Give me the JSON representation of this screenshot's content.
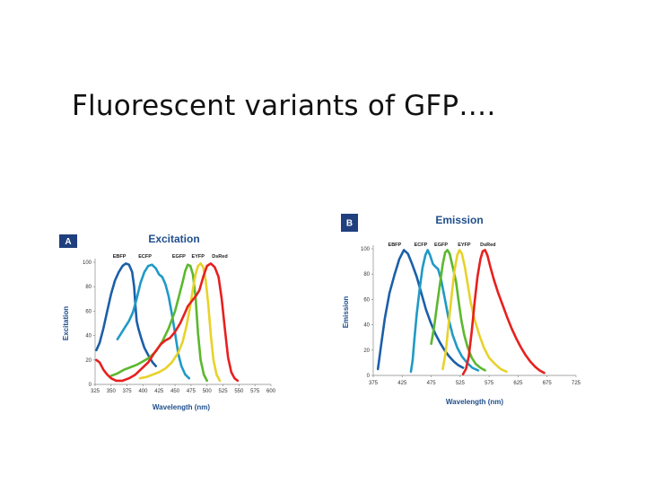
{
  "slide": {
    "title": "Fluorescent variants of GFP…."
  },
  "chart_data": [
    {
      "type": "line",
      "panel": "A",
      "title": "Excitation",
      "xlabel": "Wavelength (nm)",
      "ylabel": "Excitation",
      "xlim": [
        325,
        600
      ],
      "ylim": [
        0,
        100
      ],
      "x_ticks": [
        "325",
        "350",
        "375",
        "400",
        "425",
        "450",
        "475",
        "500",
        "525",
        "550",
        "575",
        "600"
      ],
      "y_ticks": [
        "0",
        "20",
        "40",
        "60",
        "80",
        "100"
      ],
      "series": [
        {
          "name": "EBFP",
          "color": "#1b5fa8",
          "label_x": 363,
          "points": [
            [
              327,
              28
            ],
            [
              332,
              34
            ],
            [
              338,
              46
            ],
            [
              344,
              60
            ],
            [
              350,
              74
            ],
            [
              356,
              85
            ],
            [
              362,
              92
            ],
            [
              368,
              97
            ],
            [
              373,
              99
            ],
            [
              378,
              98
            ],
            [
              383,
              92
            ],
            [
              386,
              80
            ],
            [
              388,
              65
            ],
            [
              390,
              52
            ],
            [
              393,
              45
            ],
            [
              397,
              38
            ],
            [
              402,
              30
            ],
            [
              408,
              24
            ],
            [
              415,
              18
            ],
            [
              420,
              15
            ]
          ]
        },
        {
          "name": "ECFP",
          "color": "#1f9ac6",
          "label_x": 403,
          "points": [
            [
              360,
              37
            ],
            [
              366,
              42
            ],
            [
              372,
              47
            ],
            [
              378,
              52
            ],
            [
              384,
              59
            ],
            [
              390,
              70
            ],
            [
              396,
              83
            ],
            [
              402,
              92
            ],
            [
              408,
              97
            ],
            [
              414,
              98
            ],
            [
              420,
              95
            ],
            [
              425,
              90
            ],
            [
              430,
              88
            ],
            [
              435,
              82
            ],
            [
              440,
              72
            ],
            [
              445,
              58
            ],
            [
              450,
              42
            ],
            [
              455,
              25
            ],
            [
              460,
              15
            ],
            [
              466,
              8
            ],
            [
              472,
              5
            ]
          ]
        },
        {
          "name": "EGFP",
          "color": "#5cb82e",
          "label_x": 456,
          "points": [
            [
              350,
              7
            ],
            [
              360,
              9
            ],
            [
              370,
              12
            ],
            [
              380,
              14
            ],
            [
              390,
              16
            ],
            [
              400,
              19
            ],
            [
              410,
              22
            ],
            [
              420,
              27
            ],
            [
              430,
              35
            ],
            [
              440,
              46
            ],
            [
              450,
              60
            ],
            [
              456,
              72
            ],
            [
              462,
              84
            ],
            [
              466,
              93
            ],
            [
              470,
              98
            ],
            [
              474,
              97
            ],
            [
              478,
              90
            ],
            [
              482,
              72
            ],
            [
              486,
              42
            ],
            [
              490,
              20
            ],
            [
              495,
              8
            ],
            [
              500,
              3
            ]
          ]
        },
        {
          "name": "EYFP",
          "color": "#e8d22a",
          "label_x": 486,
          "points": [
            [
              395,
              5
            ],
            [
              405,
              6
            ],
            [
              415,
              8
            ],
            [
              425,
              10
            ],
            [
              435,
              13
            ],
            [
              445,
              18
            ],
            [
              455,
              26
            ],
            [
              462,
              35
            ],
            [
              468,
              48
            ],
            [
              473,
              62
            ],
            [
              478,
              78
            ],
            [
              482,
              90
            ],
            [
              486,
              97
            ],
            [
              490,
              99
            ],
            [
              494,
              96
            ],
            [
              498,
              85
            ],
            [
              502,
              65
            ],
            [
              506,
              40
            ],
            [
              510,
              20
            ],
            [
              515,
              8
            ],
            [
              520,
              3
            ]
          ]
        },
        {
          "name": "DsRed",
          "color": "#e81f1f",
          "label_x": 520,
          "points": [
            [
              327,
              20
            ],
            [
              332,
              18
            ],
            [
              338,
              12
            ],
            [
              344,
              8
            ],
            [
              350,
              5
            ],
            [
              358,
              3
            ],
            [
              368,
              3
            ],
            [
              378,
              5
            ],
            [
              388,
              8
            ],
            [
              398,
              13
            ],
            [
              408,
              18
            ],
            [
              418,
              26
            ],
            [
              428,
              33
            ],
            [
              435,
              36
            ],
            [
              442,
              38
            ],
            [
              450,
              43
            ],
            [
              458,
              50
            ],
            [
              465,
              58
            ],
            [
              470,
              64
            ],
            [
              476,
              68
            ],
            [
              482,
              72
            ],
            [
              488,
              77
            ],
            [
              494,
              88
            ],
            [
              500,
              97
            ],
            [
              506,
              99
            ],
            [
              512,
              96
            ],
            [
              518,
              88
            ],
            [
              523,
              70
            ],
            [
              528,
              45
            ],
            [
              533,
              22
            ],
            [
              538,
              10
            ],
            [
              543,
              5
            ],
            [
              548,
              3
            ]
          ]
        }
      ]
    },
    {
      "type": "line",
      "panel": "B",
      "title": "Emission",
      "xlabel": "Wavelength (nm)",
      "ylabel": "Emission",
      "xlim": [
        375,
        725
      ],
      "ylim": [
        0,
        100
      ],
      "x_ticks": [
        "375",
        "425",
        "475",
        "525",
        "575",
        "625",
        "675",
        "725"
      ],
      "y_ticks": [
        "0",
        "20",
        "40",
        "60",
        "80",
        "100"
      ],
      "series": [
        {
          "name": "EBFP",
          "color": "#1b5fa8",
          "label_x": 412,
          "points": [
            [
              383,
              5
            ],
            [
              388,
              22
            ],
            [
              395,
              45
            ],
            [
              403,
              65
            ],
            [
              412,
              80
            ],
            [
              420,
              92
            ],
            [
              428,
              99
            ],
            [
              435,
              96
            ],
            [
              442,
              88
            ],
            [
              450,
              78
            ],
            [
              458,
              65
            ],
            [
              466,
              52
            ],
            [
              474,
              42
            ],
            [
              482,
              33
            ],
            [
              490,
              26
            ],
            [
              498,
              20
            ],
            [
              506,
              15
            ],
            [
              514,
              11
            ],
            [
              522,
              8
            ],
            [
              530,
              6
            ]
          ]
        },
        {
          "name": "ECFP",
          "color": "#1f9ac6",
          "label_x": 457,
          "points": [
            [
              440,
              3
            ],
            [
              443,
              12
            ],
            [
              446,
              28
            ],
            [
              450,
              48
            ],
            [
              455,
              68
            ],
            [
              460,
              85
            ],
            [
              465,
              95
            ],
            [
              469,
              99
            ],
            [
              473,
              95
            ],
            [
              478,
              88
            ],
            [
              482,
              86
            ],
            [
              487,
              84
            ],
            [
              492,
              76
            ],
            [
              498,
              62
            ],
            [
              505,
              45
            ],
            [
              512,
              32
            ],
            [
              520,
              22
            ],
            [
              528,
              15
            ],
            [
              537,
              10
            ],
            [
              546,
              6
            ],
            [
              556,
              4
            ]
          ]
        },
        {
          "name": "EGFP",
          "color": "#5cb82e",
          "label_x": 492,
          "points": [
            [
              475,
              25
            ],
            [
              480,
              38
            ],
            [
              485,
              55
            ],
            [
              490,
              72
            ],
            [
              495,
              88
            ],
            [
              499,
              97
            ],
            [
              503,
              99
            ],
            [
              507,
              96
            ],
            [
              511,
              88
            ],
            [
              514,
              82
            ],
            [
              518,
              74
            ],
            [
              522,
              60
            ],
            [
              527,
              44
            ],
            [
              532,
              32
            ],
            [
              538,
              22
            ],
            [
              545,
              14
            ],
            [
              552,
              9
            ],
            [
              560,
              6
            ],
            [
              568,
              4
            ]
          ]
        },
        {
          "name": "EYFP",
          "color": "#e8d22a",
          "label_x": 532,
          "points": [
            [
              495,
              5
            ],
            [
              500,
              18
            ],
            [
              505,
              40
            ],
            [
              510,
              62
            ],
            [
              515,
              82
            ],
            [
              520,
              95
            ],
            [
              524,
              99
            ],
            [
              528,
              96
            ],
            [
              533,
              86
            ],
            [
              538,
              72
            ],
            [
              543,
              58
            ],
            [
              550,
              44
            ],
            [
              558,
              32
            ],
            [
              566,
              22
            ],
            [
              575,
              14
            ],
            [
              585,
              9
            ],
            [
              595,
              5
            ],
            [
              605,
              3
            ]
          ]
        },
        {
          "name": "DsRed",
          "color": "#e81f1f",
          "label_x": 573,
          "points": [
            [
              530,
              1
            ],
            [
              535,
              5
            ],
            [
              540,
              15
            ],
            [
              545,
              35
            ],
            [
              550,
              58
            ],
            [
              555,
              78
            ],
            [
              560,
              92
            ],
            [
              564,
              98
            ],
            [
              568,
              99
            ],
            [
              572,
              95
            ],
            [
              577,
              86
            ],
            [
              583,
              76
            ],
            [
              590,
              66
            ],
            [
              598,
              56
            ],
            [
              606,
              46
            ],
            [
              614,
              37
            ],
            [
              622,
              29
            ],
            [
              630,
              22
            ],
            [
              638,
              16
            ],
            [
              646,
              11
            ],
            [
              654,
              7
            ],
            [
              662,
              4
            ],
            [
              670,
              2
            ]
          ]
        }
      ]
    }
  ]
}
